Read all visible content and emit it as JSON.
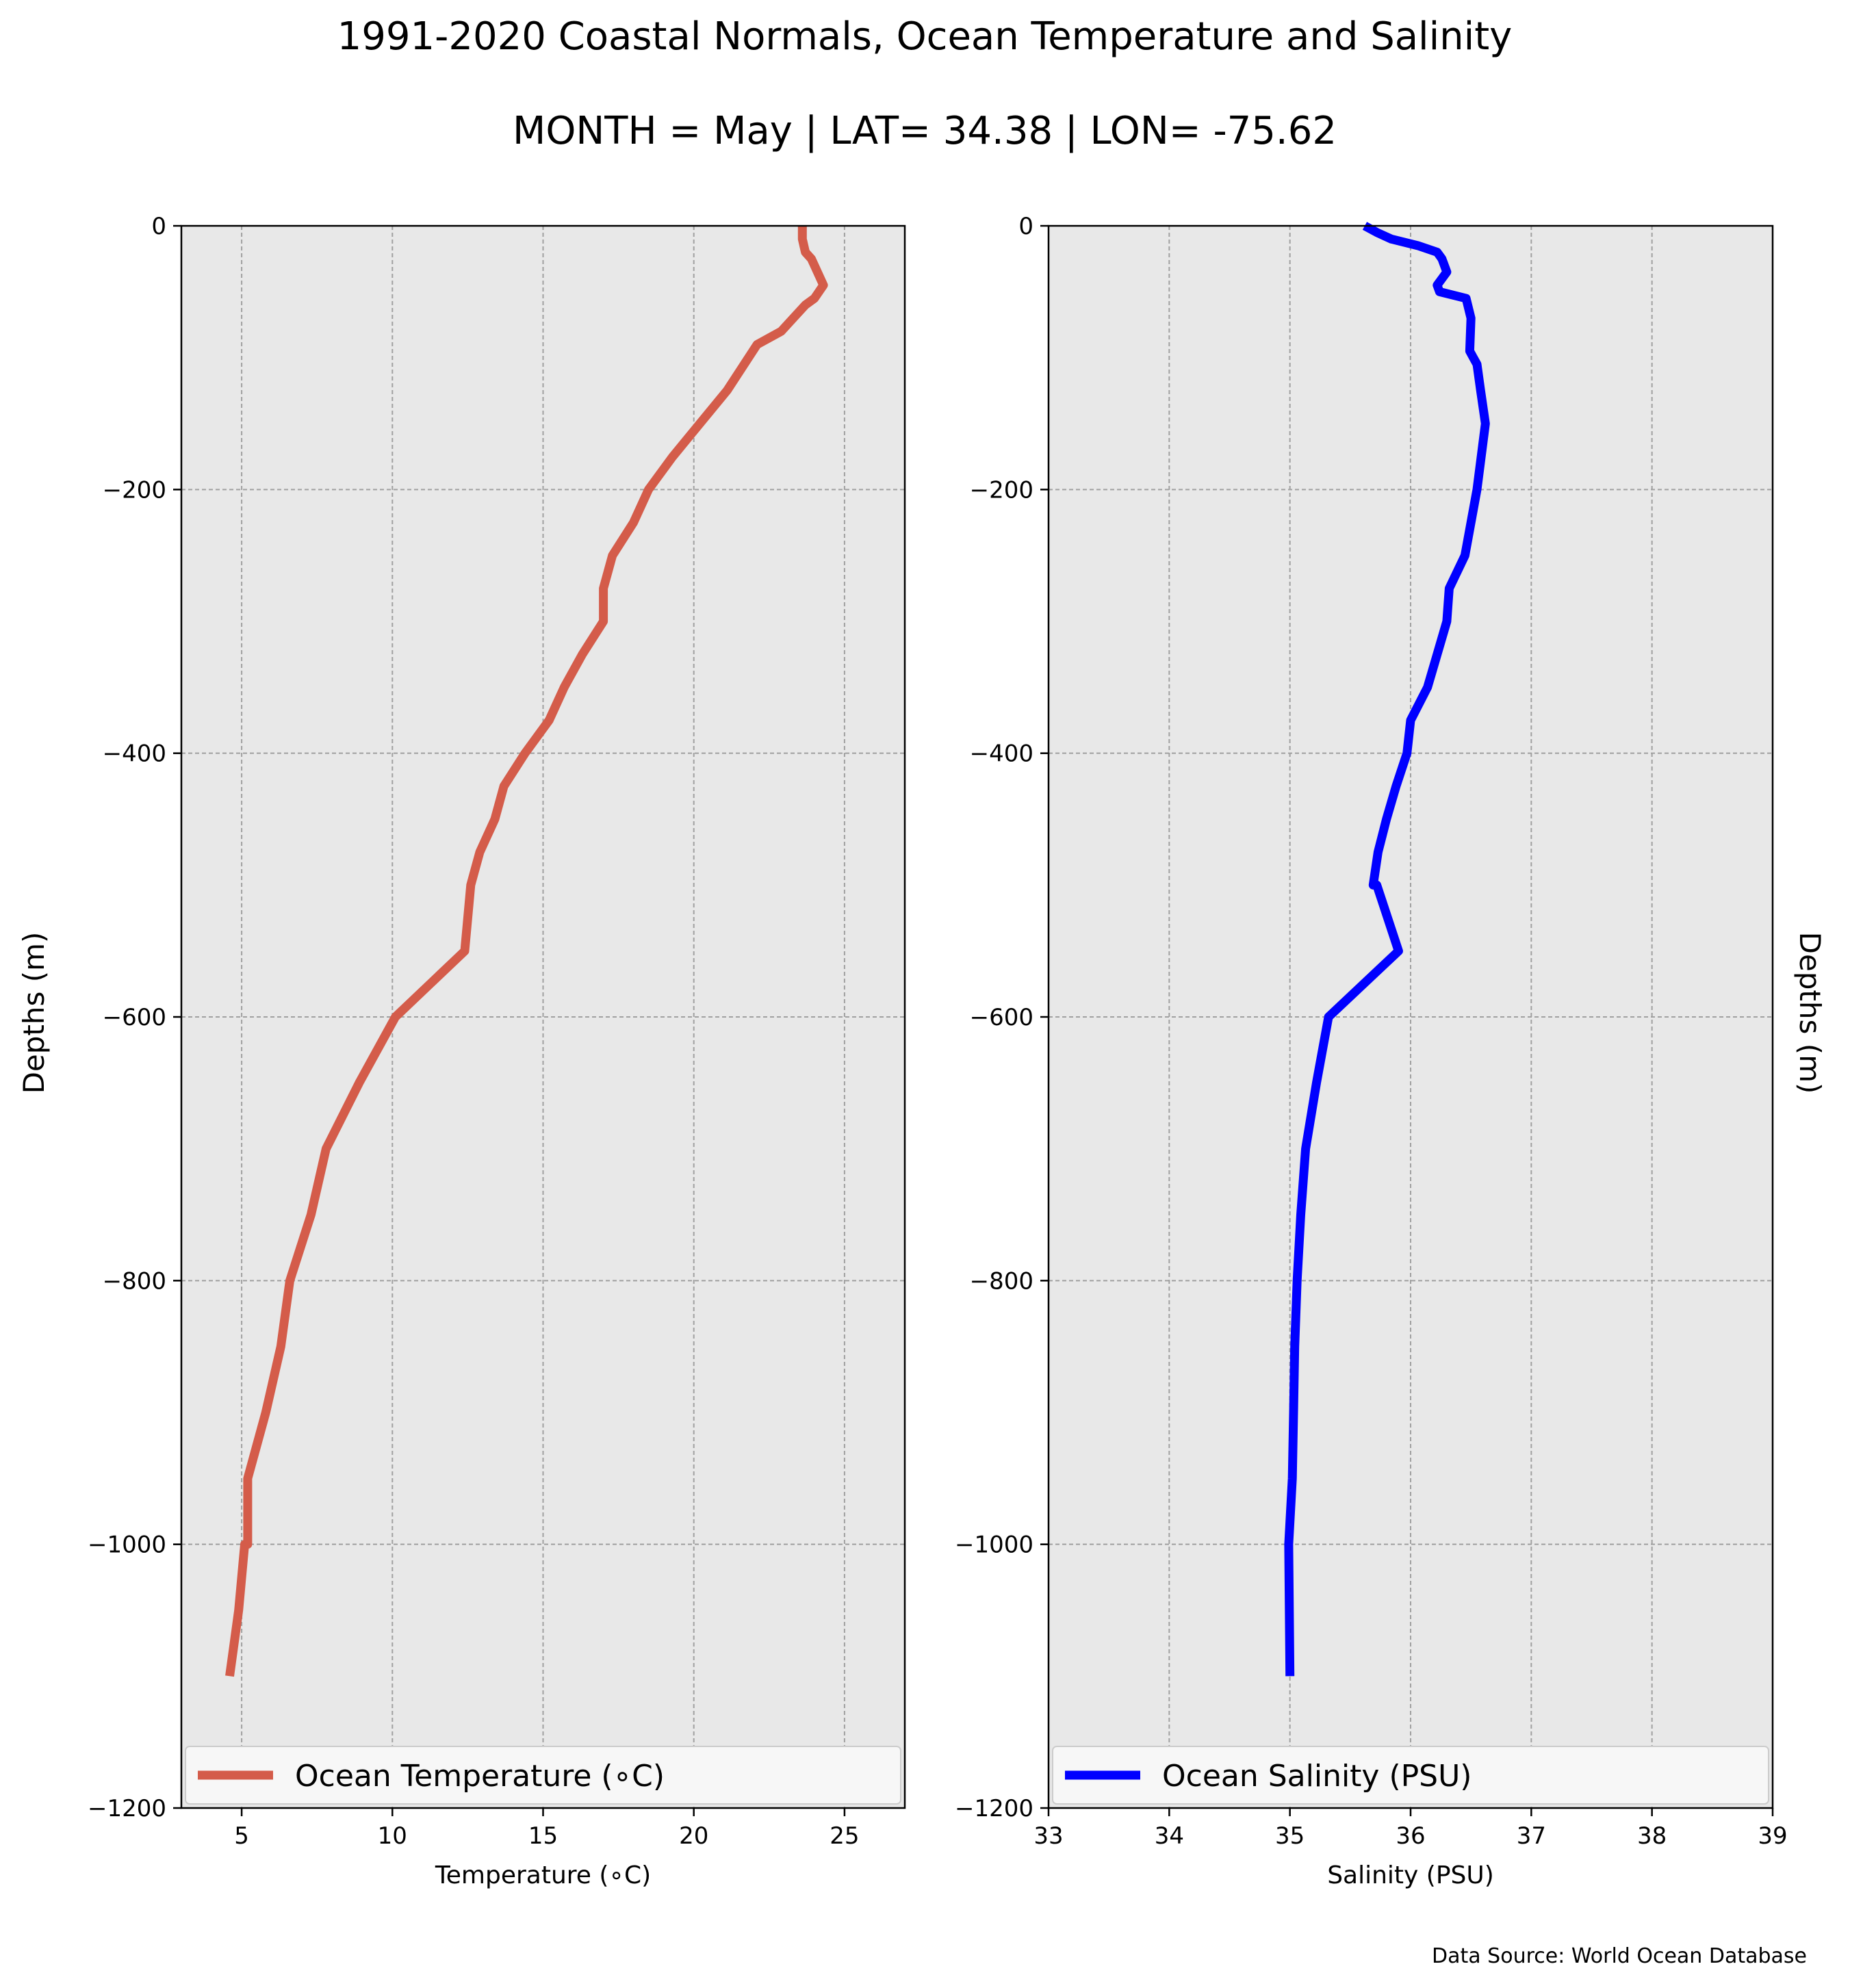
{
  "figure": {
    "title": "1991-2020 Coastal Normals, Ocean Temperature and Salinity",
    "subtitle": "MONTH = May | LAT= 34.38 | LON= -75.62",
    "source": "Data Source: World Ocean Database",
    "left_ylabel": "Depths (m)",
    "right_ylabel": "Depths (m)"
  },
  "chart_data": [
    {
      "type": "line",
      "xlabel": "Temperature (∘C)",
      "ylabel": "Depths (m)",
      "xlim": [
        3,
        27
      ],
      "ylim": [
        -1200,
        0
      ],
      "xticks": [
        5,
        10,
        15,
        20,
        25
      ],
      "yticks": [
        0,
        -200,
        -400,
        -600,
        -800,
        -1000,
        -1200
      ],
      "grid": true,
      "legend_position": "lower-center",
      "color": "#d45c4a",
      "series": [
        {
          "name": "Ocean Temperature (∘C)",
          "x": [
            23.6,
            23.6,
            23.6,
            23.7,
            23.9,
            24.0,
            24.3,
            24.0,
            23.7,
            23.3,
            22.9,
            22.1,
            21.1,
            20.2,
            19.3,
            18.5,
            18.0,
            17.3,
            17.0,
            17.0,
            16.3,
            15.7,
            15.2,
            14.4,
            13.7,
            13.4,
            12.9,
            12.6,
            12.4,
            10.1,
            8.9,
            7.8,
            7.3,
            6.6,
            6.3,
            5.8,
            5.2,
            5.2,
            5.1,
            4.9,
            4.6
          ],
          "y": [
            0,
            -5,
            -10,
            -20,
            -25,
            -30,
            -45,
            -55,
            -60,
            -70,
            -80,
            -90,
            -125,
            -150,
            -175,
            -200,
            -225,
            -250,
            -275,
            -300,
            -325,
            -350,
            -375,
            -400,
            -425,
            -450,
            -475,
            -500,
            -550,
            -600,
            -650,
            -700,
            -750,
            -800,
            -850,
            -900,
            -950,
            -1000,
            -1000,
            -1050,
            -1100
          ]
        }
      ]
    },
    {
      "type": "line",
      "xlabel": "Salinity (PSU)",
      "ylabel": "",
      "xlim": [
        33,
        39
      ],
      "ylim": [
        -1200,
        0
      ],
      "xticks": [
        33,
        34,
        35,
        36,
        37,
        38,
        39
      ],
      "yticks": [
        0,
        -200,
        -400,
        -600,
        -800,
        -1000,
        -1200
      ],
      "grid": true,
      "legend_position": "lower-center",
      "color": "#0000ff",
      "series": [
        {
          "name": "Ocean Salinity (PSU)",
          "x": [
            35.62,
            35.72,
            35.84,
            36.06,
            36.22,
            36.26,
            36.3,
            36.22,
            36.24,
            36.46,
            36.5,
            36.49,
            36.52,
            36.55,
            36.58,
            36.62,
            36.55,
            36.5,
            36.45,
            36.32,
            36.3,
            36.22,
            36.14,
            36.0,
            35.97,
            35.88,
            35.8,
            35.73,
            35.69,
            35.72,
            35.9,
            35.32,
            35.22,
            35.13,
            35.09,
            35.06,
            35.04,
            35.03,
            35.02,
            34.99,
            35.0
          ],
          "y": [
            0,
            -5,
            -10,
            -15,
            -20,
            -25,
            -35,
            -45,
            -50,
            -55,
            -70,
            -95,
            -100,
            -105,
            -125,
            -150,
            -200,
            -225,
            -250,
            -275,
            -300,
            -325,
            -350,
            -375,
            -400,
            -425,
            -450,
            -475,
            -500,
            -500,
            -550,
            -600,
            -650,
            -700,
            -750,
            -800,
            -850,
            -900,
            -950,
            -1000,
            -1100
          ]
        }
      ]
    }
  ]
}
